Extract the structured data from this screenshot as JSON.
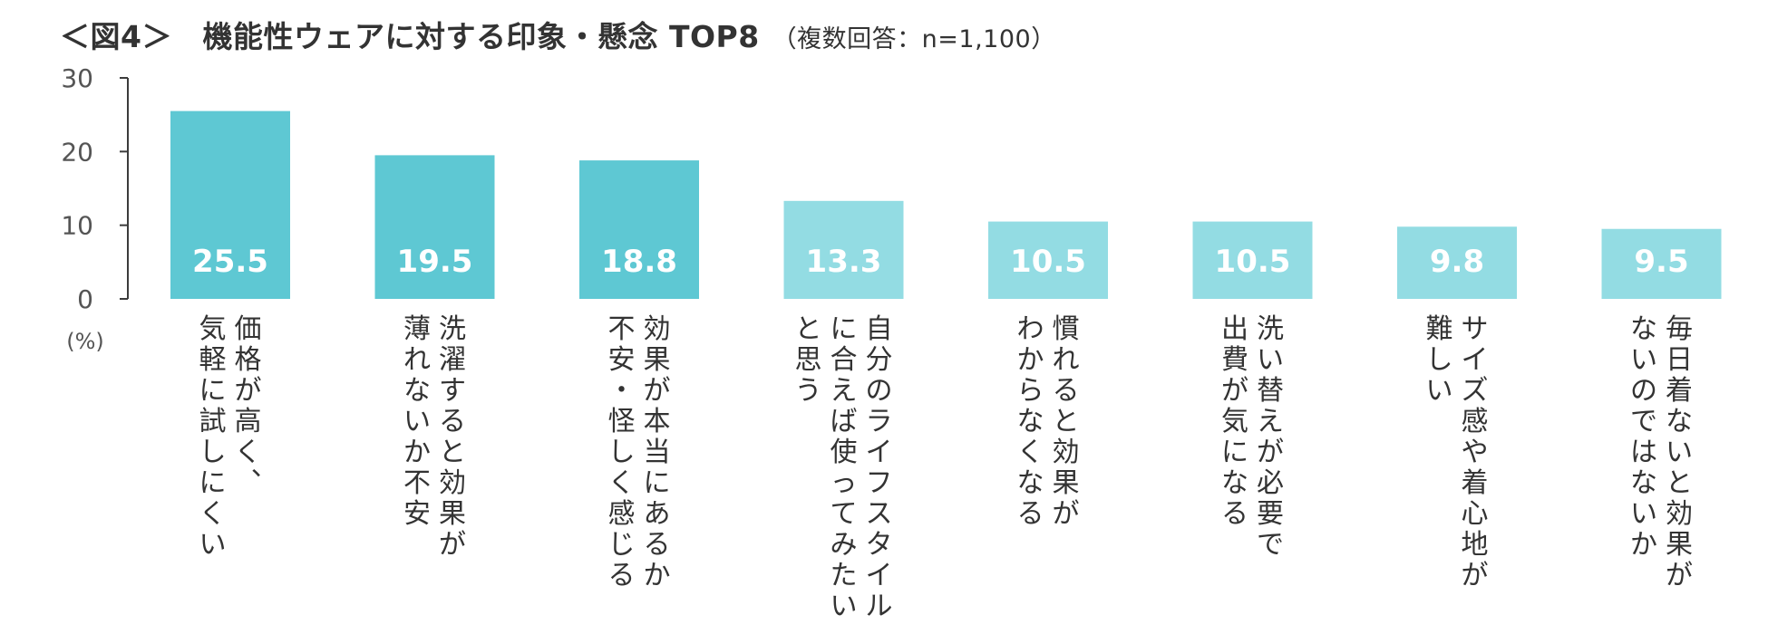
{
  "title": {
    "main": "＜図4＞　機能性ウェアに対する印象・懸念 TOP8",
    "sub": "（複数回答：n=1,100）"
  },
  "chart_data": {
    "type": "bar",
    "ylim": [
      0,
      30
    ],
    "yticks": [
      "0",
      "10",
      "20",
      "30"
    ],
    "unit_label": "(%)",
    "grid": false,
    "categories": [
      [
        "価格が高く、",
        "気軽に試しにくい"
      ],
      [
        "洗濯すると効果が",
        "薄れないか不安"
      ],
      [
        "効果が本当にあるか",
        "不安・怪しく感じる"
      ],
      [
        "自分のライフスタイル",
        "に合えば使ってみたい",
        "と思う"
      ],
      [
        "慣れると効果が",
        "わからなくなる"
      ],
      [
        "洗い替えが必要で",
        "出費が気になる"
      ],
      [
        "サイズ感や着心地が",
        "難しい"
      ],
      [
        "毎日着ないと効果が",
        "ないのではないか"
      ]
    ],
    "values": [
      25.5,
      19.5,
      18.8,
      13.3,
      10.5,
      10.5,
      9.8,
      9.5
    ],
    "value_labels": [
      "25.5",
      "19.5",
      "18.8",
      "13.3",
      "10.5",
      "10.5",
      "9.8",
      "9.5"
    ],
    "colors": {
      "primary": "#5ec8d3",
      "secondary": "#93dce3",
      "value_text": "#ffffff",
      "axis": "#3c3c3c"
    },
    "highlight_top_n": 3
  }
}
